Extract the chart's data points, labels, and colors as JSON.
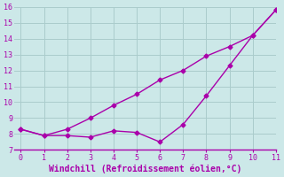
{
  "xlabel": "Windchill (Refroidissement éolien,°C)",
  "x": [
    0,
    1,
    2,
    3,
    4,
    5,
    6,
    7,
    8,
    9,
    10,
    11
  ],
  "line1": [
    8.3,
    7.9,
    7.9,
    7.8,
    8.2,
    8.1,
    7.5,
    8.6,
    10.4,
    12.3,
    14.2,
    15.8
  ],
  "line2": [
    8.3,
    7.9,
    8.3,
    9.0,
    9.8,
    10.5,
    11.4,
    12.0,
    12.9,
    13.5,
    14.2,
    15.8
  ],
  "line_color": "#aa00aa",
  "bg_color": "#cce8e8",
  "grid_color": "#aacccc",
  "axis_color": "#aa00aa",
  "ylim": [
    7,
    16
  ],
  "xlim": [
    -0.3,
    11
  ],
  "yticks": [
    7,
    8,
    9,
    10,
    11,
    12,
    13,
    14,
    15,
    16
  ],
  "xticks": [
    0,
    1,
    2,
    3,
    4,
    5,
    6,
    7,
    8,
    9,
    10,
    11
  ],
  "marker": "D",
  "markersize": 2.5,
  "linewidth": 1.0
}
